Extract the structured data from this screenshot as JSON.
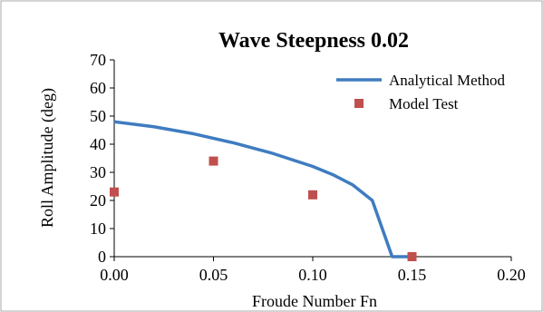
{
  "chart_data": {
    "type": "scatter",
    "title": "Wave Steepness 0.02",
    "xlabel": "Froude Number Fn",
    "ylabel": "Roll Amplitude (deg)",
    "xlim": [
      0,
      0.2
    ],
    "ylim": [
      0,
      70
    ],
    "x_ticks": [
      "0.00",
      "0.05",
      "0.10",
      "0.15",
      "0.20"
    ],
    "y_ticks": [
      "0",
      "10",
      "20",
      "30",
      "40",
      "50",
      "60",
      "70"
    ],
    "grid": false,
    "legend_position": "top-right",
    "series": [
      {
        "name": "Analytical Method",
        "kind": "line",
        "color": "#3f7cc0",
        "x": [
          0.0,
          0.02,
          0.04,
          0.06,
          0.08,
          0.1,
          0.11,
          0.12,
          0.13,
          0.14,
          0.15
        ],
        "y": [
          48,
          46.2,
          43.7,
          40.5,
          36.7,
          32.1,
          29.2,
          25.6,
          20,
          0,
          0
        ]
      },
      {
        "name": "Model Test",
        "kind": "scatter",
        "color": "#c0504d",
        "marker": "square",
        "x": [
          0.0,
          0.05,
          0.1,
          0.15
        ],
        "y": [
          23,
          34,
          22,
          0
        ]
      }
    ]
  }
}
